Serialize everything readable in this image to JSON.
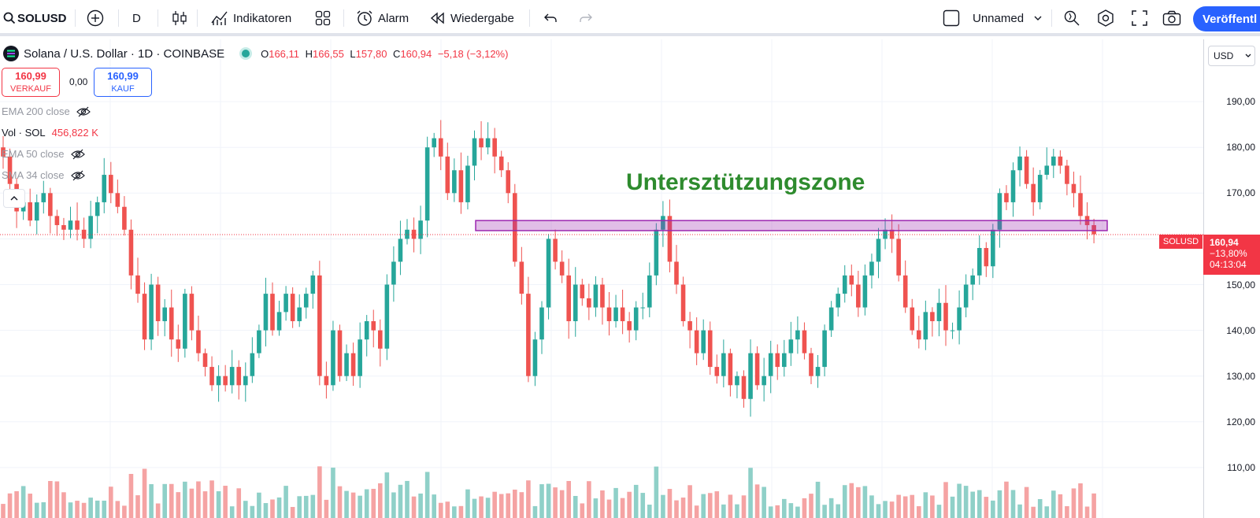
{
  "toolbar": {
    "symbol": "SOLUSD",
    "interval": "D",
    "indicators_label": "Indikatoren",
    "alarm_label": "Alarm",
    "replay_label": "Wiedergabe",
    "layout_name": "Unnamed",
    "publish_label": "Veröffentl"
  },
  "legend": {
    "title": "Solana / U.S. Dollar · 1D · COINBASE",
    "o_label": "O",
    "o_value": "166,11",
    "h_label": "H",
    "h_value": "166,55",
    "l_label": "L",
    "l_value": "157,80",
    "c_label": "C",
    "c_value": "160,94",
    "change": "−5,18 (−3,12%)",
    "sell_price": "160,99",
    "sell_label": "VERKAUF",
    "spread": "0,00",
    "buy_price": "160,99",
    "buy_label": "KAUF",
    "ema200": "EMA 200 close",
    "vol_label": "Vol · SOL",
    "vol_value": "456,822 K",
    "ema50": "EMA 50 close",
    "sma34": "SMA 34 close"
  },
  "price_axis": {
    "currency": "USD",
    "ticks": [
      "190,00",
      "180,00",
      "170,00",
      "160,00",
      "150,00",
      "140,00",
      "130,00",
      "120,00",
      "110,00"
    ],
    "tick_values": [
      190,
      180,
      170,
      160,
      150,
      140,
      130,
      120,
      110
    ],
    "symbol_badge": "SOLUSD",
    "last_price": "160,94",
    "last_change": "−13,80%",
    "countdown": "04:13:04"
  },
  "annotation": {
    "text": "Untersztützungszone",
    "zone_low": 161.8,
    "zone_high": 164.0,
    "color": "#9c27b0"
  },
  "colors": {
    "up": "#26a69a",
    "down": "#ef5350",
    "up_vol": "#8fd0c8",
    "down_vol": "#f5a3a3"
  },
  "chart_data": {
    "type": "candlestick",
    "closes": [
      178,
      172,
      166,
      168,
      164,
      168,
      170,
      165,
      163,
      162,
      164,
      162,
      160,
      165,
      168,
      174,
      170,
      167,
      162,
      152,
      148,
      138,
      150,
      142,
      145,
      138,
      136,
      148,
      140,
      135,
      132,
      128,
      130,
      128,
      132,
      128,
      130,
      135,
      140,
      148,
      140,
      144,
      148,
      142,
      145,
      148,
      152,
      130,
      128,
      140,
      130,
      135,
      130,
      138,
      142,
      140,
      136,
      150,
      155,
      160,
      162,
      160,
      164,
      180,
      182,
      178,
      170,
      175,
      168,
      176,
      182,
      180,
      182,
      178,
      175,
      170,
      155,
      148,
      130,
      138,
      145,
      160,
      155,
      152,
      142,
      150,
      147,
      145,
      150,
      145,
      142,
      145,
      142,
      140,
      145,
      145,
      152,
      162,
      165,
      155,
      150,
      142,
      140,
      135,
      140,
      132,
      130,
      135,
      128,
      130,
      125,
      135,
      128,
      130,
      135,
      132,
      135,
      138,
      140,
      135,
      130,
      132,
      140,
      145,
      148,
      152,
      150,
      145,
      152,
      155,
      160,
      162,
      160,
      152,
      145,
      140,
      138,
      144,
      142,
      146,
      140,
      140,
      145,
      150,
      152,
      158,
      154,
      162,
      170,
      168,
      175,
      178,
      172,
      168,
      174,
      176,
      178,
      176,
      172,
      170,
      165,
      163,
      161
    ]
  }
}
